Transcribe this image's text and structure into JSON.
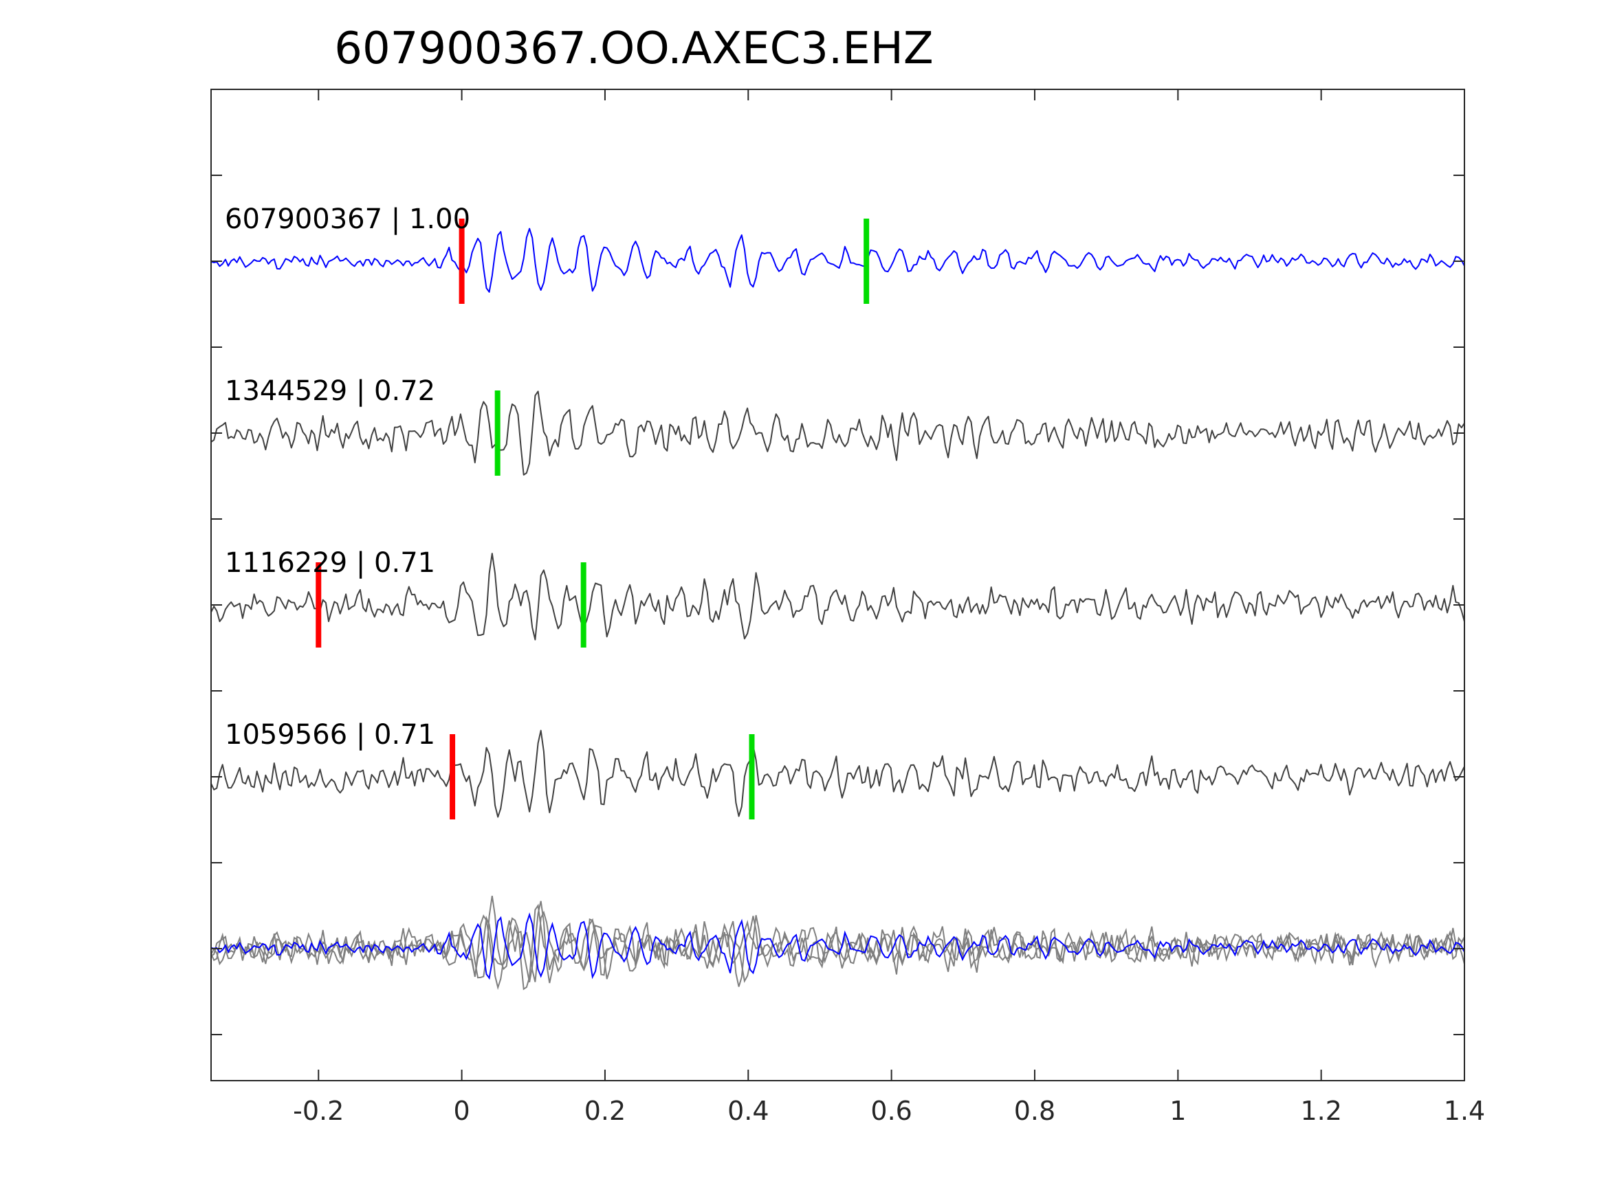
{
  "chart_data": {
    "type": "line",
    "title": "607900367.OO.AXEC3.EHZ",
    "xlabel": "",
    "ylabel": "",
    "xlim": [
      -0.35,
      1.4
    ],
    "xticks": [
      -0.2,
      0,
      0.2,
      0.4,
      0.6,
      0.8,
      1,
      1.2,
      1.4
    ],
    "xtick_labels": [
      "-0.2",
      "0",
      "0.2",
      "0.4",
      "0.6",
      "0.8",
      "1",
      "1.2",
      "1.4"
    ],
    "grid": false,
    "traces": [
      {
        "label": "607900367 | 1.00",
        "event_id": "607900367",
        "correlation": 1.0,
        "color": "#0000ff",
        "lag": 0.0,
        "seed": 11,
        "red_pick": 0.0,
        "green_pick": 0.565
      },
      {
        "label": "1344529 | 0.72",
        "event_id": "1344529",
        "correlation": 0.72,
        "color": "#404040",
        "lag": 0.012,
        "seed": 23,
        "red_pick": null,
        "green_pick": 0.05
      },
      {
        "label": "1116229 | 0.71",
        "event_id": "1116229",
        "correlation": 0.71,
        "color": "#404040",
        "lag": -0.008,
        "seed": 37,
        "red_pick": -0.2,
        "green_pick": 0.17
      },
      {
        "label": "1059566 | 0.71",
        "event_id": "1059566",
        "correlation": 0.71,
        "color": "#404040",
        "lag": 0.004,
        "seed": 53,
        "red_pick": -0.013,
        "green_pick": 0.405
      }
    ],
    "stack": {
      "colors": [
        "#7f7f7f",
        "#0000ff"
      ]
    },
    "pick_colors": {
      "red": "#ff0000",
      "green": "#00dd00"
    }
  }
}
